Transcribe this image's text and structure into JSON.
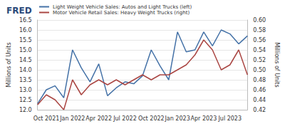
{
  "chart_data": {
    "type": "line",
    "title": "FRED",
    "categories": [
      null,
      "Oct 2021",
      null,
      null,
      "Jan 2022",
      null,
      null,
      "Apr 2022",
      null,
      null,
      "Jul 2022",
      null,
      null,
      "Oct 2022",
      null,
      null,
      "Jan 2023",
      null,
      null,
      "Apr 2023",
      null,
      null,
      "Jul 2023",
      null,
      null
    ],
    "series": [
      {
        "name": "Light Weight Vehicle Sales: Autos and Light Trucks (left)",
        "color": "#4572a7",
        "axis": "y",
        "values": [
          12.3,
          13.0,
          13.2,
          12.6,
          15.0,
          14.1,
          13.4,
          14.3,
          12.7,
          13.1,
          13.4,
          13.3,
          13.7,
          15.0,
          14.2,
          13.5,
          15.9,
          14.9,
          15.0,
          15.9,
          15.2,
          16.0,
          15.8,
          15.3,
          15.7
        ]
      },
      {
        "name": "Motor Vehicle Retail Sales: Heavy Weight Trucks (right)",
        "color": "#aa4643",
        "axis": "y2",
        "values": [
          0.43,
          0.45,
          0.44,
          0.42,
          0.48,
          0.45,
          0.47,
          0.48,
          0.47,
          0.48,
          0.47,
          0.48,
          0.49,
          0.48,
          0.49,
          0.49,
          0.5,
          0.51,
          0.53,
          0.56,
          0.54,
          0.5,
          0.51,
          0.54,
          0.49
        ]
      }
    ],
    "y_label": "Millions of Units",
    "y2_label": "Millions of Units",
    "ylim": [
      12.0,
      16.5
    ],
    "yticks": [
      {
        "value": 12,
        "label": "12.0"
      },
      12.5,
      {
        "value": 13,
        "label": "13.0"
      },
      13.5,
      {
        "value": 14,
        "label": "14.0"
      },
      14.5,
      {
        "value": 15,
        "label": "15.0"
      },
      15.5,
      {
        "value": 16,
        "label": "16.0"
      },
      16.5
    ],
    "y2lim": [
      0.42,
      0.6
    ],
    "y2ticks": [
      0.42,
      0.44,
      0.46,
      0.48,
      {
        "value": 0.5,
        "label": "0.50"
      },
      0.52,
      0.54,
      0.56,
      0.58,
      {
        "value": 0.6,
        "label": "0.60"
      }
    ],
    "grid": true,
    "legend": "top-left"
  }
}
